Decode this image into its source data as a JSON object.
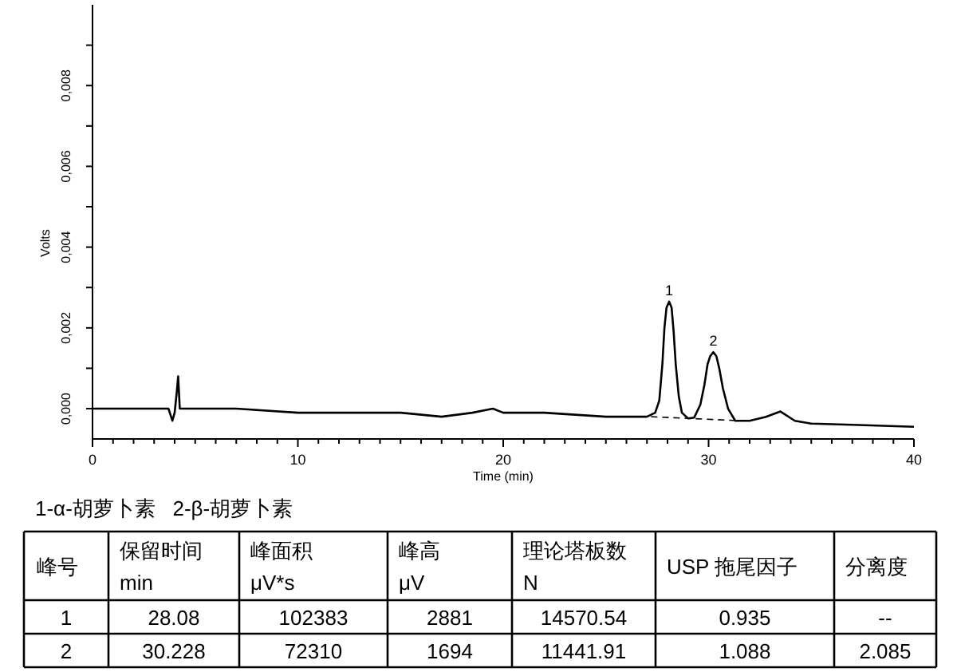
{
  "chart_data": {
    "type": "line",
    "xlabel": "Time (min)",
    "ylabel": "Volts",
    "xlim": [
      0,
      40
    ],
    "ylim": [
      -0.00075,
      0.01
    ],
    "xticks": [
      0,
      {
        "value": 1,
        "label": null
      },
      {
        "value": 2,
        "label": null
      },
      {
        "value": 3,
        "label": null
      },
      {
        "value": 4,
        "label": null
      },
      {
        "value": 5,
        "label": null
      },
      {
        "value": 6,
        "label": null
      },
      {
        "value": 7,
        "label": null
      },
      {
        "value": 8,
        "label": null
      },
      {
        "value": 9,
        "label": null
      },
      10,
      {
        "value": 11,
        "label": null
      },
      {
        "value": 12,
        "label": null
      },
      {
        "value": 13,
        "label": null
      },
      {
        "value": 14,
        "label": null
      },
      {
        "value": 15,
        "label": null
      },
      {
        "value": 16,
        "label": null
      },
      {
        "value": 17,
        "label": null
      },
      {
        "value": 18,
        "label": null
      },
      {
        "value": 19,
        "label": null
      },
      20,
      {
        "value": 21,
        "label": null
      },
      {
        "value": 22,
        "label": null
      },
      {
        "value": 23,
        "label": null
      },
      {
        "value": 24,
        "label": null
      },
      {
        "value": 25,
        "label": null
      },
      {
        "value": 26,
        "label": null
      },
      {
        "value": 27,
        "label": null
      },
      {
        "value": 28,
        "label": null
      },
      {
        "value": 29,
        "label": null
      },
      30,
      {
        "value": 31,
        "label": null
      },
      {
        "value": 32,
        "label": null
      },
      {
        "value": 33,
        "label": null
      },
      {
        "value": 34,
        "label": null
      },
      {
        "value": 35,
        "label": null
      },
      {
        "value": 36,
        "label": null
      },
      {
        "value": 37,
        "label": null
      },
      {
        "value": 38,
        "label": null
      },
      {
        "value": 39,
        "label": null
      },
      40
    ],
    "yticks": [
      {
        "value": 0,
        "label": "0,000"
      },
      {
        "value": 0.001,
        "label": null
      },
      {
        "value": 0.002,
        "label": "0,002"
      },
      {
        "value": 0.003,
        "label": null
      },
      {
        "value": 0.004,
        "label": "0,004"
      },
      {
        "value": 0.005,
        "label": null
      },
      {
        "value": 0.006,
        "label": "0,006"
      },
      {
        "value": 0.007,
        "label": null
      },
      {
        "value": 0.008,
        "label": "0,008"
      },
      {
        "value": 0.009,
        "label": null
      }
    ],
    "series": [
      {
        "color": "#000000",
        "x": [
          0,
          1,
          2,
          3,
          3.7,
          3.89,
          4.0,
          4.1,
          4.17,
          4.25,
          4.4,
          5,
          7,
          10,
          12,
          15,
          17,
          18.5,
          19.5,
          20,
          22,
          25,
          27,
          27.4,
          27.6,
          27.75,
          27.85,
          27.95,
          28.08,
          28.2,
          28.3,
          28.4,
          28.55,
          28.7,
          29.0,
          29.3,
          29.6,
          29.8,
          29.95,
          30.08,
          30.23,
          30.38,
          30.52,
          30.7,
          30.95,
          31.3,
          32,
          32.8,
          33.5,
          34.2,
          35,
          37,
          40
        ],
        "values": [
          0,
          0,
          0,
          0,
          0,
          -0.0003,
          -0.0001,
          0.0004,
          0.0008,
          0,
          0,
          0,
          0,
          -0.0001,
          -0.0001,
          -0.0001,
          -0.0002,
          -0.0001,
          0,
          -0.0001,
          -0.0001,
          -0.0002,
          -0.0002,
          -0.0001,
          0.0002,
          0.0011,
          0.002,
          0.0025,
          0.00265,
          0.0025,
          0.0019,
          0.0011,
          0.0003,
          -0.0001,
          -0.00024,
          -0.00022,
          0.0001,
          0.0006,
          0.0011,
          0.0013,
          0.0014,
          0.0013,
          0.001,
          0.0005,
          0,
          -0.0003,
          -0.0003,
          -0.0002,
          -7e-05,
          -0.0003,
          -0.00037,
          -0.0004,
          -0.00045
        ]
      },
      {
        "color": "#000000",
        "line_style": "dashed",
        "x": [
          27.2,
          31.6
        ],
        "values": [
          -0.0002,
          -0.0003
        ]
      }
    ],
    "annotations": [
      {
        "text": "1",
        "x": 28.08,
        "y": 0.00265
      },
      {
        "text": "2",
        "x": 30.23,
        "y": 0.0014
      },
      "1-α-胡萝卜素   2-β-胡萝卜素",
      "峰号",
      "保留时间\nmin",
      "峰面积\nμV*s",
      "峰高\nμV",
      "理论塔板数\nN",
      "USP 拖尾因子",
      "分离度",
      "1",
      "28.08",
      "102383",
      "2881",
      "14570.54",
      "0.935",
      "--",
      "2",
      "30.228",
      "72310",
      "1694",
      "11441.91",
      "1.088",
      "2.085"
    ]
  }
}
